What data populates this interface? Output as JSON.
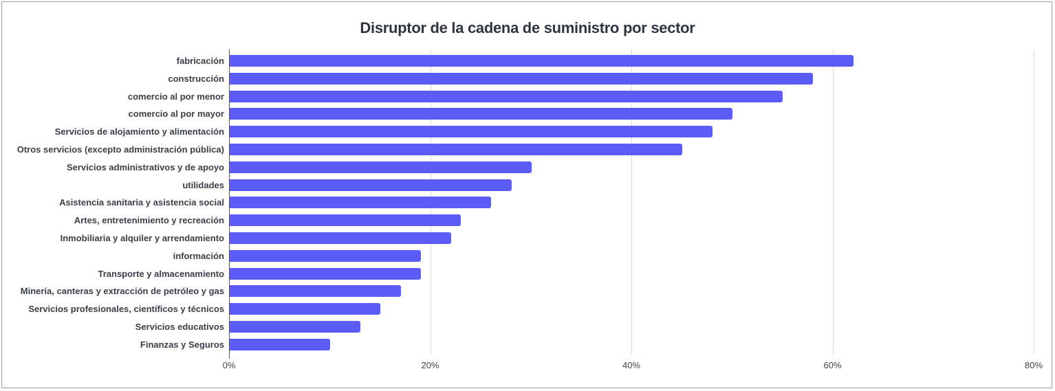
{
  "chart_data": {
    "type": "bar",
    "orientation": "horizontal",
    "title": "Disruptor de la cadena de suministro por sector",
    "xlabel": "",
    "ylabel": "",
    "xlim": [
      0,
      80
    ],
    "x_ticks": [
      "0%",
      "20%",
      "40%",
      "60%",
      "80%"
    ],
    "grid": true,
    "bar_color": "#5b5bf5",
    "categories": [
      "fabricación",
      "construcción",
      "comercio al por menor",
      "comercio al por mayor",
      "Servicios de alojamiento y alimentación",
      "Otros servicios (excepto administración pública)",
      "Servicios administrativos y de apoyo",
      "utilidades",
      "Asistencia sanitaria y asistencia social",
      "Artes, entretenimiento y recreación",
      "Inmobiliaria y alquiler y arrendamiento",
      "información",
      "Transporte y almacenamiento",
      "Minería, canteras y extracción de petróleo y gas",
      "Servicios profesionales, científicos y técnicos",
      "Servicios educativos",
      "Finanzas y Seguros"
    ],
    "values": [
      62,
      58,
      55,
      50,
      48,
      45,
      30,
      28,
      26,
      23,
      22,
      19,
      19,
      17,
      15,
      13,
      10
    ]
  }
}
